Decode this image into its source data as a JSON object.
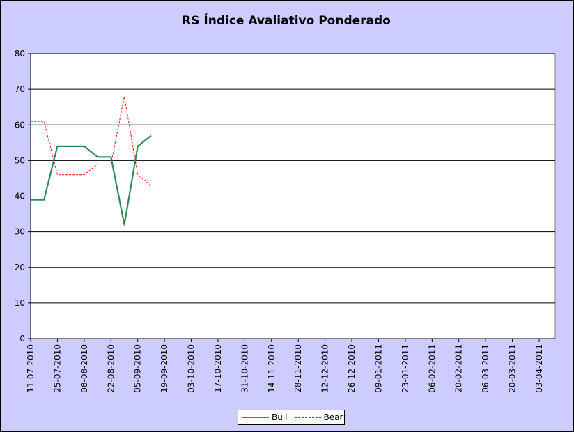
{
  "chart_data": {
    "type": "line",
    "title": "RS Índice Avaliativo Ponderado",
    "xlabel": "",
    "ylabel": "",
    "ylim": [
      0,
      80
    ],
    "yticks": [
      0,
      10,
      20,
      30,
      40,
      50,
      60,
      70,
      80
    ],
    "xticks": [
      "11-07-2010",
      "25-07-2010",
      "08-08-2010",
      "22-08-2010",
      "05-09-2010",
      "19-09-2010",
      "03-10-2010",
      "17-10-2010",
      "31-10-2010",
      "14-11-2010",
      "28-11-2010",
      "12-12-2010",
      "26-12-2010",
      "09-01-2011",
      "23-01-2011",
      "06-02-2011",
      "20-02-2011",
      "06-03-2011",
      "20-03-2011",
      "03-04-2011"
    ],
    "x": [
      "11-07-2010",
      "18-07-2010",
      "25-07-2010",
      "01-08-2010",
      "08-08-2010",
      "15-08-2010",
      "22-08-2010",
      "29-08-2010",
      "05-09-2010",
      "12-09-2010"
    ],
    "series": [
      {
        "name": "Bull",
        "color": "#2e8b57",
        "style": "solid",
        "values": [
          39,
          39,
          54,
          54,
          54,
          51,
          51,
          32,
          54,
          57
        ]
      },
      {
        "name": "Bear",
        "color": "#ff0000",
        "style": "dashed",
        "values": [
          61,
          61,
          46,
          46,
          46,
          49,
          49,
          68,
          46,
          43
        ]
      }
    ],
    "grid": true,
    "legend": "bottom"
  }
}
